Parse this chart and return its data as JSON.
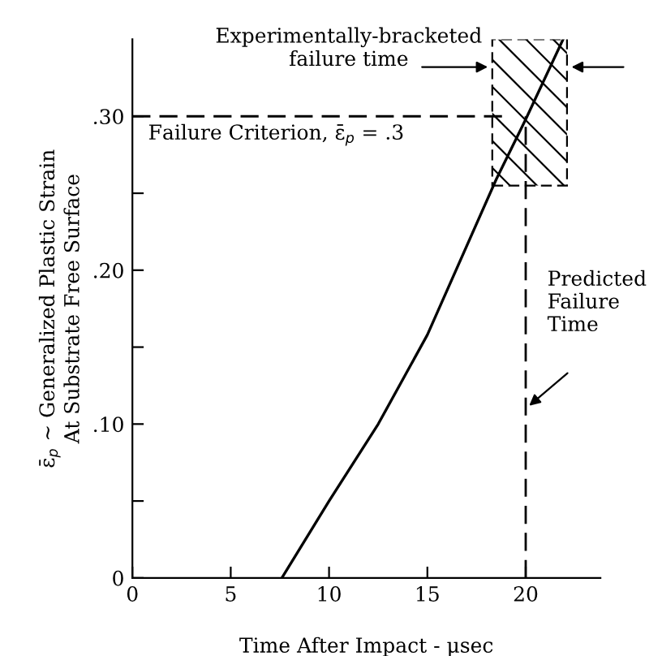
{
  "chart_data": {
    "type": "line",
    "xlabel": "Time After Impact - μsec",
    "ylabel": "ε̄$_{p}$ ~ Generalized Plastic Strain\nAt Substrate Free Surface",
    "x": [
      7.6,
      10,
      12.5,
      15,
      18.5,
      20,
      21.9
    ],
    "series": [
      {
        "color": "#000000",
        "values": [
          0,
          0.05,
          0.1,
          0.158,
          0.259,
          0.298,
          0.35
        ]
      }
    ],
    "xlim": [
      0,
      23.8
    ],
    "ylim": [
      0,
      0.35
    ],
    "xticks": [
      0,
      5,
      10,
      15,
      20
    ],
    "yticks": [
      {
        "value": 0,
        "label": "0"
      },
      {
        "value": 0.05,
        "label": null
      },
      {
        "value": 0.1,
        "label": ".10"
      },
      {
        "value": 0.15,
        "label": null
      },
      {
        "value": 0.2,
        "label": ".20"
      },
      {
        "value": 0.25,
        "label": null
      },
      {
        "value": 0.3,
        "label": ".30"
      }
    ],
    "ref_lines": [
      {
        "axis": "y",
        "value": 0.3,
        "label": "Failure Criterion, ε̄$_{p}$ = .3",
        "line_style": "dashed",
        "color": "#000000"
      },
      {
        "axis": "x",
        "value": 20,
        "label": "Predicted\nFailure\nTime",
        "line_style": "dashed",
        "color": "#000000"
      }
    ],
    "bands": [
      {
        "axis": "x",
        "from": 18.3,
        "to": 22.1,
        "label": "Experimentally-bracketed\nfailure time"
      }
    ],
    "grid": false,
    "marker": "none",
    "line_style": "solid"
  }
}
